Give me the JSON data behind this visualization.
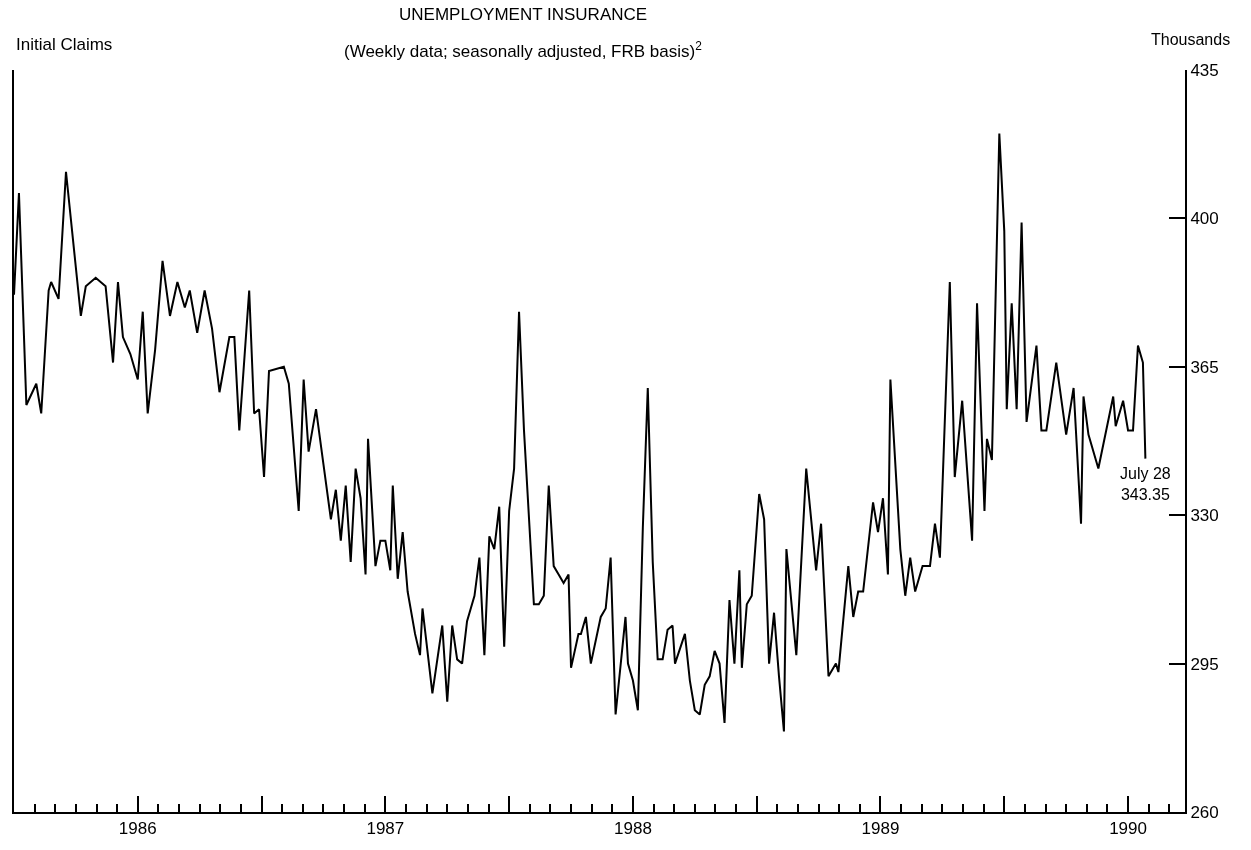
{
  "chart_data": {
    "type": "line",
    "title": "UNEMPLOYMENT INSURANCE",
    "subtitle": "(Weekly data; seasonally adjusted, FRB basis)$^{2}$",
    "ylabel": "Thousands",
    "annotations": [
      "Initial Claims",
      {
        "text": "July 28\n343.35",
        "x": 1990.57,
        "y": 343.35
      }
    ],
    "x": [
      1986.0,
      1986.02,
      1986.05,
      1986.09,
      1986.11,
      1986.14,
      1986.15,
      1986.18,
      1986.21,
      1986.27,
      1986.29,
      1986.33,
      1986.37,
      1986.4,
      1986.42,
      1986.44,
      1986.47,
      1986.5,
      1986.52,
      1986.54,
      1986.57,
      1986.6,
      1986.63,
      1986.66,
      1986.69,
      1986.71,
      1986.74,
      1986.77,
      1986.8,
      1986.83,
      1986.87,
      1986.89,
      1986.91,
      1986.95,
      1986.97,
      1986.99,
      1987.01,
      1987.03,
      1987.09,
      1987.11,
      1987.15,
      1987.17,
      1987.19,
      1987.22,
      1987.25,
      1987.28,
      1987.3,
      1987.32,
      1987.34,
      1987.36,
      1987.38,
      1987.4,
      1987.42,
      1987.43,
      1987.46,
      1987.48,
      1987.5,
      1987.52,
      1987.53,
      1987.55,
      1987.57,
      1987.59,
      1987.62,
      1987.64,
      1987.65,
      1987.69,
      1987.73,
      1987.75,
      1987.77,
      1987.79,
      1987.81,
      1987.83,
      1987.86,
      1987.88,
      1987.9,
      1987.92,
      1987.94,
      1987.96,
      1987.98,
      1988.0,
      1988.02,
      1988.04,
      1988.06,
      1988.1,
      1988.12,
      1988.14,
      1988.16,
      1988.18,
      1988.2,
      1988.22,
      1988.24,
      1988.25,
      1988.28,
      1988.29,
      1988.31,
      1988.33,
      1988.37,
      1988.39,
      1988.41,
      1988.43,
      1988.47,
      1988.48,
      1988.5,
      1988.52,
      1988.54,
      1988.56,
      1988.58,
      1988.6,
      1988.62,
      1988.64,
      1988.66,
      1988.67,
      1988.71,
      1988.73,
      1988.75,
      1988.77,
      1988.79,
      1988.81,
      1988.83,
      1988.85,
      1988.87,
      1988.89,
      1988.91,
      1988.93,
      1988.94,
      1988.96,
      1988.98,
      1989.01,
      1989.03,
      1989.05,
      1989.07,
      1989.09,
      1989.11,
      1989.12,
      1989.16,
      1989.2,
      1989.24,
      1989.26,
      1989.29,
      1989.32,
      1989.33,
      1989.37,
      1989.39,
      1989.41,
      1989.43,
      1989.47,
      1989.49,
      1989.51,
      1989.53,
      1989.54,
      1989.58,
      1989.6,
      1989.62,
      1989.64,
      1989.67,
      1989.7,
      1989.72,
      1989.74,
      1989.78,
      1989.8,
      1989.83,
      1989.87,
      1989.89,
      1989.92,
      1989.93,
      1989.95,
      1989.98,
      1990.0,
      1990.01,
      1990.03,
      1990.05,
      1990.07,
      1990.09,
      1990.13,
      1990.15,
      1990.17,
      1990.21,
      1990.25,
      1990.28,
      1990.31,
      1990.32,
      1990.34,
      1990.38,
      1990.44,
      1990.45,
      1990.48,
      1990.5,
      1990.52,
      1990.54,
      1990.56,
      1990.57
    ],
    "values": [
      382,
      406,
      356,
      361,
      354,
      383,
      385,
      381,
      411,
      377,
      384,
      386,
      384,
      366,
      385,
      372,
      368,
      362,
      378,
      354,
      369,
      390,
      377,
      385,
      379,
      383,
      373,
      383,
      374,
      359,
      372,
      372,
      350,
      383,
      354,
      355,
      339,
      364,
      365,
      361,
      331,
      362,
      345,
      355,
      342,
      329,
      336,
      324,
      337,
      319,
      341,
      334,
      316,
      348,
      318,
      324,
      324,
      317,
      337,
      315,
      326,
      312,
      302,
      297,
      308,
      288,
      304,
      286,
      304,
      296,
      295,
      305,
      311,
      320,
      297,
      325,
      322,
      332,
      299,
      331,
      341,
      378,
      350,
      309,
      309,
      311,
      337,
      318,
      316,
      314,
      316,
      294,
      302,
      302,
      306,
      295,
      306,
      308,
      320,
      283,
      306,
      295,
      291,
      284,
      327,
      360,
      319,
      296,
      296,
      303,
      304,
      295,
      302,
      291,
      284,
      283,
      290,
      292,
      298,
      295,
      281,
      310,
      295,
      317,
      294,
      309,
      311,
      335,
      329,
      295,
      307,
      292,
      279,
      322,
      297,
      341,
      317,
      328,
      292,
      295,
      293,
      318,
      306,
      312,
      312,
      333,
      326,
      334,
      316,
      362,
      322,
      311,
      320,
      312,
      318,
      318,
      328,
      320,
      385,
      339,
      357,
      324,
      380,
      331,
      348,
      343,
      420,
      397,
      355,
      380,
      355,
      399,
      352,
      370,
      350,
      350,
      366,
      349,
      360,
      328,
      358,
      349,
      341,
      358,
      351,
      357,
      350,
      350,
      370,
      366,
      343.35
    ],
    "color": "#000000",
    "xlim": [
      1986.0,
      1990.73
    ],
    "xticks": [
      {
        "value": 1986.5,
        "label": "1986"
      },
      {
        "value": 1987.0,
        "label": null
      },
      {
        "value": 1987.5,
        "label": "1987"
      },
      {
        "value": 1988.0,
        "label": null
      },
      {
        "value": 1988.5,
        "label": "1988"
      },
      {
        "value": 1989.0,
        "label": null
      },
      {
        "value": 1989.5,
        "label": "1989"
      },
      {
        "value": 1990.0,
        "label": null
      },
      {
        "value": 1990.5,
        "label": "1990"
      }
    ],
    "ylim": [
      260,
      435
    ],
    "yticks": [
      260,
      295,
      330,
      365,
      400,
      435
    ],
    "marker": "none",
    "line_style": "solid"
  }
}
